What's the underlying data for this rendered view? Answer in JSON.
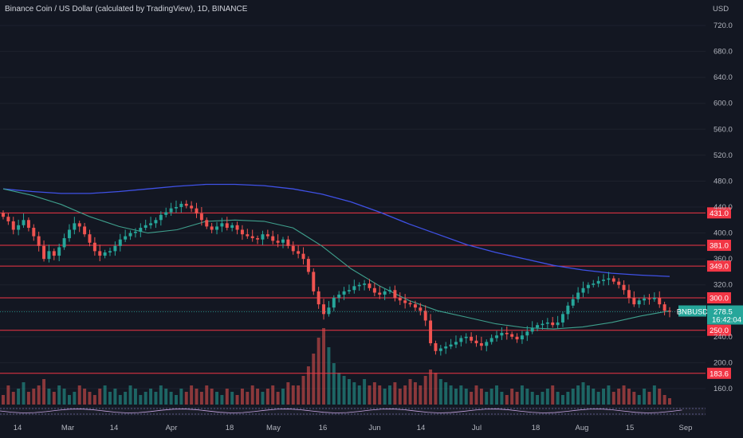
{
  "header": {
    "title": "Binance Coin / US Dollar (calculated by TradingView), 1D, BINANCE"
  },
  "axis": {
    "currency": "USD"
  },
  "price_label": {
    "symbol": "BNBUSD",
    "price": "278.5",
    "countdown": "16:42:04",
    "color": "#26a69a"
  },
  "colors": {
    "background": "#131722",
    "up": "#26a69a",
    "down": "#ef5350",
    "level": "#f23645",
    "ma_slow": "#3f51e6",
    "ma_fast": "#3fa08d",
    "grid": "#1e222d",
    "text": "#b2b5be"
  },
  "chart_data": {
    "type": "candlestick",
    "ylim": [
      110,
      760
    ],
    "y_ticks": [
      160,
      200,
      240,
      280,
      320,
      360,
      400,
      440,
      480,
      520,
      560,
      600,
      640,
      680,
      720
    ],
    "x_ticks": [
      "14",
      "Mar",
      "14",
      "Apr",
      "18",
      "May",
      "16",
      "Jun",
      "14",
      "Jul",
      "18",
      "Aug",
      "15",
      "Sep"
    ],
    "levels": [
      431.0,
      381.0,
      349.0,
      300.0,
      250.0,
      183.6
    ],
    "level_labels": [
      "431.0",
      "381.0",
      "349.0",
      "300.0",
      "250.0",
      "183.6"
    ],
    "close_series": [
      425,
      418,
      405,
      412,
      420,
      408,
      395,
      380,
      360,
      372,
      365,
      378,
      392,
      405,
      415,
      410,
      398,
      385,
      372,
      365,
      370,
      372,
      380,
      390,
      395,
      400,
      402,
      408,
      412,
      415,
      420,
      428,
      432,
      438,
      440,
      445,
      442,
      438,
      430,
      420,
      410,
      405,
      410,
      415,
      408,
      412,
      405,
      398,
      395,
      392,
      390,
      398,
      395,
      388,
      385,
      390,
      380,
      372,
      368,
      360,
      340,
      310,
      290,
      275,
      285,
      300,
      305,
      310,
      312,
      318,
      320,
      322,
      315,
      308,
      305,
      310,
      312,
      300,
      296,
      292,
      290,
      285,
      280,
      265,
      230,
      218,
      222,
      225,
      228,
      232,
      238,
      240,
      234,
      230,
      226,
      232,
      238,
      242,
      246,
      244,
      240,
      236,
      242,
      248,
      254,
      258,
      260,
      262,
      258,
      262,
      275,
      288,
      298,
      308,
      315,
      320,
      322,
      326,
      328,
      330,
      325,
      320,
      312,
      300,
      290,
      296,
      299,
      298,
      300,
      290,
      280,
      278.5
    ],
    "ma_slow_series": [
      468,
      464,
      461,
      461,
      464,
      468,
      472,
      475,
      475,
      473,
      468,
      460,
      448,
      432,
      414,
      398,
      382,
      370,
      360,
      350,
      343,
      338,
      335,
      333
    ],
    "ma_fast_series": [
      468,
      458,
      444,
      425,
      410,
      400,
      405,
      418,
      420,
      418,
      408,
      380,
      345,
      318,
      296,
      280,
      270,
      260,
      254,
      252,
      255,
      262,
      272,
      280
    ],
    "volume_series": [
      3,
      6,
      4,
      5,
      7,
      4,
      5,
      6,
      8,
      5,
      4,
      6,
      5,
      3,
      4,
      6,
      5,
      4,
      3,
      5,
      6,
      4,
      5,
      3,
      4,
      6,
      5,
      3,
      4,
      5,
      4,
      6,
      5,
      4,
      3,
      5,
      4,
      6,
      5,
      4,
      6,
      5,
      4,
      3,
      5,
      4,
      3,
      5,
      4,
      6,
      5,
      4,
      5,
      6,
      4,
      5,
      7,
      6,
      6,
      9,
      12,
      16,
      21,
      24,
      18,
      13,
      10,
      9,
      8,
      7,
      6,
      8,
      6,
      7,
      6,
      5,
      6,
      7,
      5,
      6,
      8,
      7,
      6,
      9,
      11,
      10,
      8,
      7,
      6,
      5,
      6,
      5,
      4,
      6,
      5,
      4,
      5,
      6,
      4,
      3,
      5,
      4,
      6,
      5,
      4,
      3,
      4,
      5,
      6,
      4,
      3,
      4,
      5,
      6,
      7,
      6,
      5,
      4,
      5,
      6,
      4,
      5,
      6,
      5,
      4,
      3,
      5,
      4,
      6,
      5,
      3,
      2
    ]
  }
}
